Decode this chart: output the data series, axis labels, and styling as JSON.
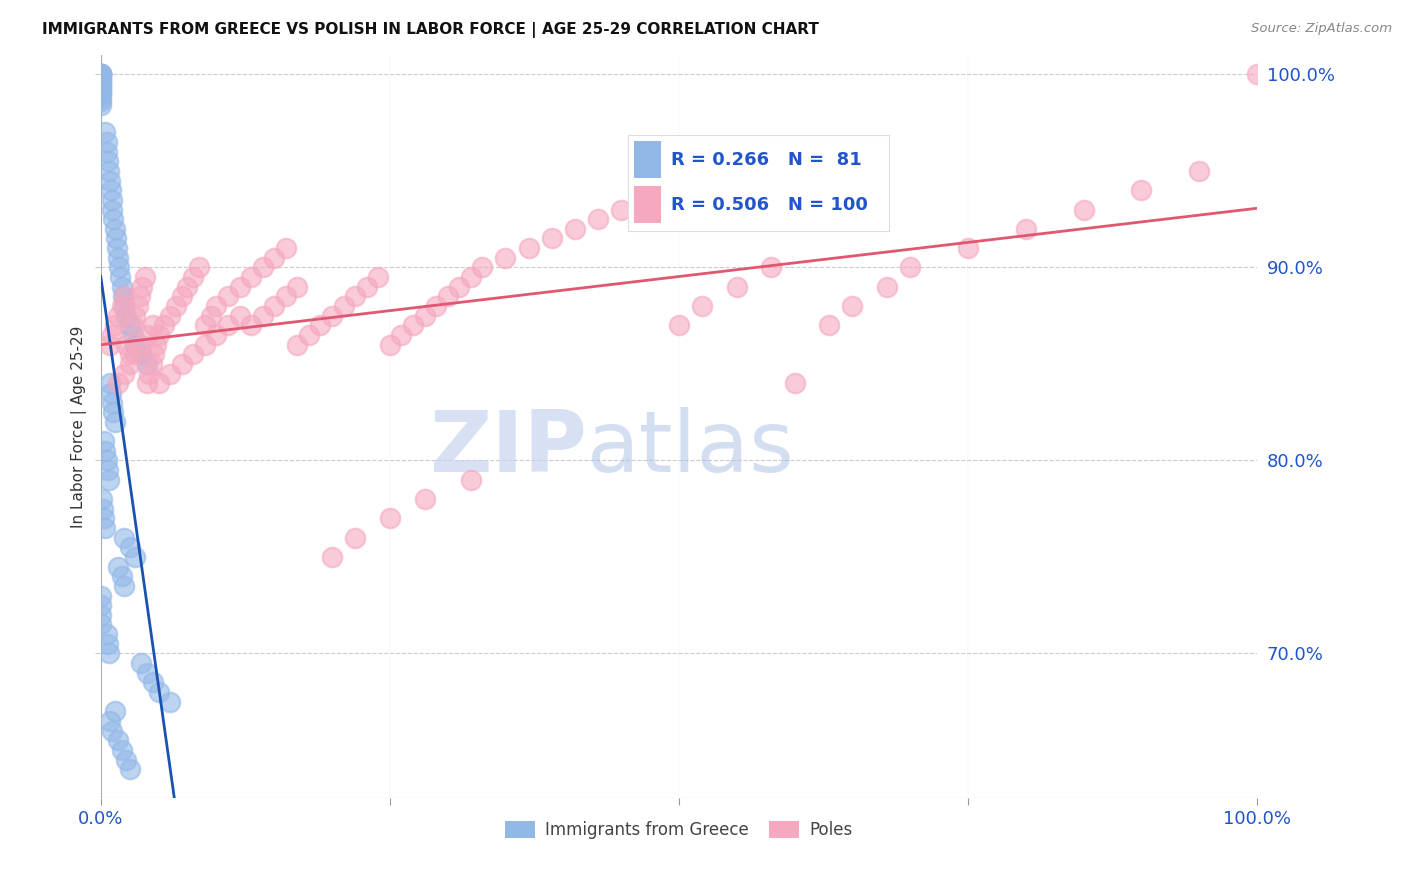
{
  "title": "IMMIGRANTS FROM GREECE VS POLISH IN LABOR FORCE | AGE 25-29 CORRELATION CHART",
  "source": "Source: ZipAtlas.com",
  "ylabel": "In Labor Force | Age 25-29",
  "xlim": [
    0.0,
    1.0
  ],
  "ylim": [
    0.625,
    1.01
  ],
  "yticks": [
    0.7,
    0.8,
    0.9,
    1.0
  ],
  "ytick_labels": [
    "70.0%",
    "80.0%",
    "90.0%",
    "100.0%"
  ],
  "legend_blue_R": "0.266",
  "legend_blue_N": "81",
  "legend_pink_R": "0.506",
  "legend_pink_N": "100",
  "legend_blue_label": "Immigrants from Greece",
  "legend_pink_label": "Poles",
  "blue_color": "#92B8E8",
  "pink_color": "#F5A8BE",
  "blue_line_color": "#1A52B0",
  "pink_line_color": "#E05870",
  "watermark_color": "#D0DCF0",
  "blue_scatter_x": [
    0.0,
    0.0,
    0.0,
    0.0,
    0.0,
    0.0,
    0.0,
    0.0,
    0.0,
    0.0,
    0.0,
    0.0,
    0.0,
    0.0,
    0.0,
    0.0,
    0.0,
    0.004,
    0.005,
    0.005,
    0.006,
    0.007,
    0.008,
    0.009,
    0.01,
    0.01,
    0.011,
    0.012,
    0.013,
    0.014,
    0.015,
    0.016,
    0.017,
    0.018,
    0.019,
    0.02,
    0.022,
    0.025,
    0.028,
    0.03,
    0.035,
    0.04,
    0.008,
    0.009,
    0.01,
    0.011,
    0.012,
    0.003,
    0.004,
    0.005,
    0.006,
    0.007,
    0.001,
    0.002,
    0.003,
    0.004,
    0.02,
    0.025,
    0.03,
    0.015,
    0.018,
    0.02,
    0.0,
    0.0,
    0.0,
    0.0,
    0.005,
    0.006,
    0.007,
    0.035,
    0.04,
    0.045,
    0.05,
    0.06,
    0.012,
    0.008,
    0.01,
    0.015,
    0.018,
    0.022,
    0.025
  ],
  "blue_scatter_y": [
    1.0,
    1.0,
    1.0,
    1.0,
    1.0,
    0.998,
    0.997,
    0.996,
    0.995,
    0.994,
    0.993,
    0.992,
    0.991,
    0.99,
    0.988,
    0.986,
    0.984,
    0.97,
    0.965,
    0.96,
    0.955,
    0.95,
    0.945,
    0.94,
    0.935,
    0.93,
    0.925,
    0.92,
    0.915,
    0.91,
    0.905,
    0.9,
    0.895,
    0.89,
    0.885,
    0.88,
    0.875,
    0.87,
    0.865,
    0.86,
    0.855,
    0.85,
    0.84,
    0.835,
    0.83,
    0.825,
    0.82,
    0.81,
    0.805,
    0.8,
    0.795,
    0.79,
    0.78,
    0.775,
    0.77,
    0.765,
    0.76,
    0.755,
    0.75,
    0.745,
    0.74,
    0.735,
    0.73,
    0.725,
    0.72,
    0.715,
    0.71,
    0.705,
    0.7,
    0.695,
    0.69,
    0.685,
    0.68,
    0.675,
    0.67,
    0.665,
    0.66,
    0.655,
    0.65,
    0.645,
    0.64
  ],
  "pink_scatter_x": [
    0.008,
    0.01,
    0.012,
    0.015,
    0.018,
    0.02,
    0.022,
    0.025,
    0.028,
    0.03,
    0.032,
    0.034,
    0.036,
    0.038,
    0.04,
    0.042,
    0.044,
    0.046,
    0.048,
    0.05,
    0.055,
    0.06,
    0.065,
    0.07,
    0.075,
    0.08,
    0.085,
    0.09,
    0.095,
    0.1,
    0.11,
    0.12,
    0.13,
    0.14,
    0.15,
    0.16,
    0.17,
    0.18,
    0.19,
    0.2,
    0.21,
    0.22,
    0.23,
    0.24,
    0.25,
    0.26,
    0.27,
    0.28,
    0.29,
    0.3,
    0.31,
    0.32,
    0.33,
    0.35,
    0.37,
    0.39,
    0.41,
    0.43,
    0.45,
    0.48,
    0.5,
    0.52,
    0.55,
    0.58,
    0.6,
    0.63,
    0.65,
    0.68,
    0.7,
    0.75,
    0.8,
    0.85,
    0.9,
    0.95,
    1.0,
    0.015,
    0.02,
    0.025,
    0.03,
    0.035,
    0.04,
    0.045,
    0.05,
    0.06,
    0.07,
    0.08,
    0.09,
    0.1,
    0.11,
    0.12,
    0.13,
    0.14,
    0.15,
    0.16,
    0.17,
    0.2,
    0.22,
    0.25,
    0.28,
    0.32
  ],
  "pink_scatter_y": [
    0.86,
    0.865,
    0.87,
    0.875,
    0.88,
    0.885,
    0.86,
    0.855,
    0.87,
    0.875,
    0.88,
    0.885,
    0.89,
    0.895,
    0.84,
    0.845,
    0.85,
    0.855,
    0.86,
    0.865,
    0.87,
    0.875,
    0.88,
    0.885,
    0.89,
    0.895,
    0.9,
    0.87,
    0.875,
    0.88,
    0.885,
    0.89,
    0.895,
    0.9,
    0.905,
    0.91,
    0.86,
    0.865,
    0.87,
    0.875,
    0.88,
    0.885,
    0.89,
    0.895,
    0.86,
    0.865,
    0.87,
    0.875,
    0.88,
    0.885,
    0.89,
    0.895,
    0.9,
    0.905,
    0.91,
    0.915,
    0.92,
    0.925,
    0.93,
    0.935,
    0.87,
    0.88,
    0.89,
    0.9,
    0.84,
    0.87,
    0.88,
    0.89,
    0.9,
    0.91,
    0.92,
    0.93,
    0.94,
    0.95,
    1.0,
    0.84,
    0.845,
    0.85,
    0.855,
    0.86,
    0.865,
    0.87,
    0.84,
    0.845,
    0.85,
    0.855,
    0.86,
    0.865,
    0.87,
    0.875,
    0.87,
    0.875,
    0.88,
    0.885,
    0.89,
    0.75,
    0.76,
    0.77,
    0.78,
    0.79
  ]
}
